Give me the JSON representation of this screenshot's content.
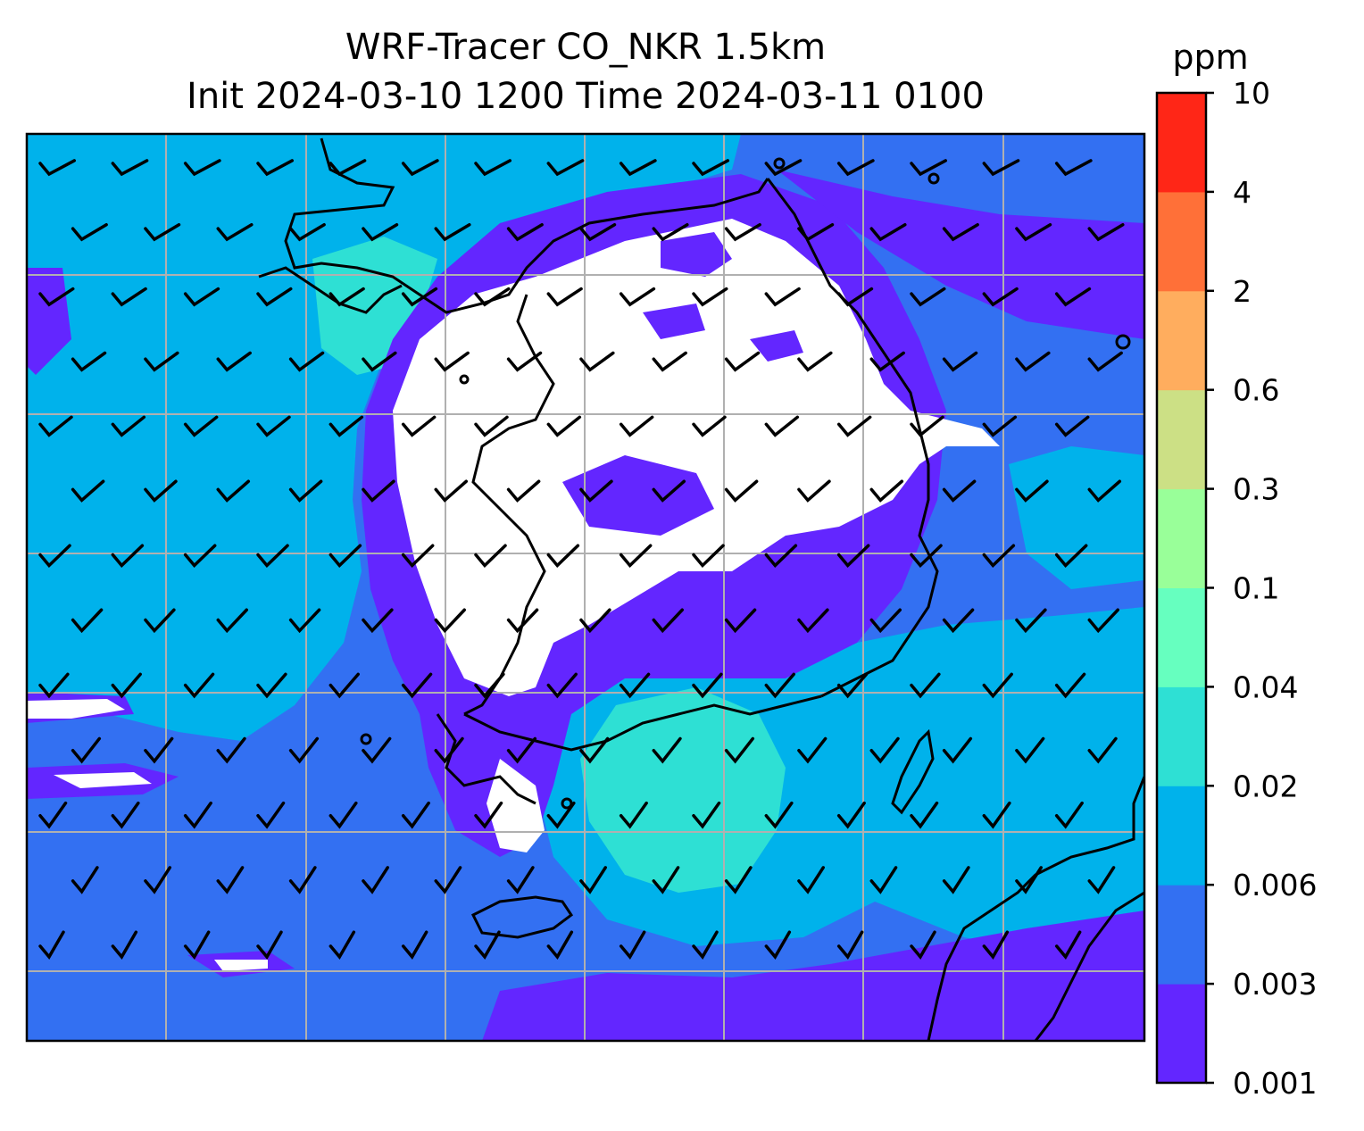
{
  "title_line1": "WRF-Tracer CO_NKR 1.5km",
  "title_line2": "Init 2024-03-10 1200 Time 2024-03-11 0100",
  "colorbar": {
    "unit": "ppm",
    "levels": [
      "0.001",
      "0.003",
      "0.006",
      "0.02",
      "0.04",
      "0.1",
      "0.3",
      "0.6",
      "2",
      "4",
      "10"
    ],
    "colors": [
      "#6326ff",
      "#3370f2",
      "#00b2eb",
      "#2ee0d4",
      "#66ffbf",
      "#99ff99",
      "#cce085",
      "#ffad5e",
      "#ff7038",
      "#ff2617"
    ]
  },
  "map": {
    "background_color": "#3370f2",
    "gridline_color": "#b0b0b0",
    "coastline_color": "#000000",
    "wind_barbs": "present"
  }
}
